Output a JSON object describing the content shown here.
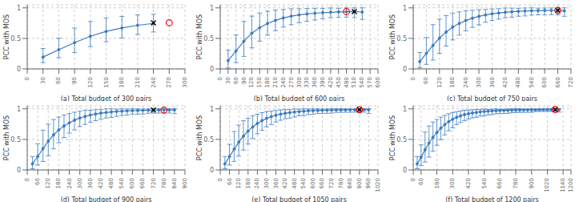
{
  "chart_data": [
    {
      "type": "line",
      "x_label": "(a) Total budget of 300 pairs",
      "y_label": "PCC with MOS",
      "xlim": [
        0,
        300
      ],
      "xticks": [
        0,
        30,
        60,
        90,
        120,
        150,
        180,
        210,
        240,
        270,
        300
      ],
      "ylim": [
        0,
        1.05
      ],
      "yticks": [
        0,
        0.5,
        1
      ],
      "grid": true,
      "series": [
        {
          "type": "line",
          "color": "#3b7bbf",
          "marker": "circle",
          "x": [
            30,
            60,
            90,
            120,
            150,
            180,
            210,
            240
          ],
          "values": [
            0.195,
            0.315,
            0.43,
            0.535,
            0.615,
            0.67,
            0.715,
            0.745
          ],
          "err_lo": [
            0.09,
            0.13,
            0.16,
            0.17,
            0.17,
            0.16,
            0.15,
            0.14
          ],
          "err_hi": [
            0.14,
            0.19,
            0.24,
            0.24,
            0.22,
            0.19,
            0.17,
            0.15
          ]
        },
        {
          "type": "scatter",
          "color": "black",
          "marker": "x",
          "x": [
            240
          ],
          "values": [
            0.755
          ]
        },
        {
          "type": "scatter",
          "color": "red",
          "marker": "open_circle",
          "x": [
            270
          ],
          "values": [
            0.755
          ]
        }
      ]
    },
    {
      "type": "line",
      "x_label": "(b) Total budget of 600 pairs",
      "y_label": "PCC with MOS",
      "xlim": [
        0,
        600
      ],
      "xticks": [
        0,
        30,
        60,
        90,
        120,
        150,
        180,
        210,
        240,
        270,
        300,
        330,
        360,
        390,
        420,
        450,
        480,
        510,
        540,
        570,
        600
      ],
      "ylim": [
        0,
        1.05
      ],
      "yticks": [
        0,
        0.5,
        1
      ],
      "grid": true,
      "series": [
        {
          "type": "line",
          "color": "#3b7bbf",
          "marker": "circle",
          "x": [
            30,
            60,
            90,
            120,
            150,
            180,
            210,
            240,
            270,
            300,
            330,
            360,
            390,
            420,
            450,
            480,
            510,
            540
          ],
          "values": [
            0.135,
            0.295,
            0.455,
            0.585,
            0.675,
            0.745,
            0.795,
            0.835,
            0.865,
            0.885,
            0.9,
            0.912,
            0.922,
            0.928,
            0.934,
            0.938,
            0.94,
            0.932
          ],
          "err_lo": [
            0.12,
            0.19,
            0.25,
            0.24,
            0.22,
            0.19,
            0.17,
            0.15,
            0.14,
            0.13,
            0.12,
            0.11,
            0.1,
            0.09,
            0.09,
            0.09,
            0.1,
            0.12
          ],
          "err_hi": [
            0.17,
            0.26,
            0.32,
            0.28,
            0.24,
            0.2,
            0.17,
            0.14,
            0.12,
            0.1,
            0.09,
            0.08,
            0.07,
            0.07,
            0.06,
            0.062,
            0.06,
            0.068
          ]
        },
        {
          "type": "scatter",
          "color": "black",
          "marker": "x",
          "x": [
            510
          ],
          "values": [
            0.94
          ]
        },
        {
          "type": "scatter",
          "color": "red",
          "marker": "open_circle",
          "x": [
            480
          ],
          "values": [
            0.94
          ]
        }
      ]
    },
    {
      "type": "line",
      "x_label": "(c) Total budget of 750 pairs",
      "y_label": "PCC with MOS",
      "xlim": [
        0,
        720
      ],
      "xticks": [
        0,
        60,
        120,
        180,
        240,
        300,
        360,
        420,
        480,
        540,
        600,
        660,
        720
      ],
      "ylim": [
        0,
        1.05
      ],
      "yticks": [
        0,
        0.5,
        1
      ],
      "grid": true,
      "series": [
        {
          "type": "line",
          "color": "#3b7bbf",
          "marker": "circle",
          "x": [
            30,
            60,
            90,
            120,
            150,
            180,
            210,
            240,
            270,
            300,
            330,
            360,
            390,
            420,
            450,
            480,
            510,
            540,
            570,
            600,
            630,
            660,
            690
          ],
          "values": [
            0.12,
            0.255,
            0.385,
            0.505,
            0.605,
            0.685,
            0.745,
            0.793,
            0.831,
            0.861,
            0.884,
            0.903,
            0.916,
            0.927,
            0.936,
            0.943,
            0.948,
            0.952,
            0.955,
            0.957,
            0.958,
            0.958,
            0.952
          ],
          "err_lo": [
            0.1,
            0.18,
            0.24,
            0.25,
            0.23,
            0.21,
            0.19,
            0.17,
            0.15,
            0.14,
            0.12,
            0.11,
            0.1,
            0.09,
            0.09,
            0.08,
            0.08,
            0.07,
            0.07,
            0.07,
            0.07,
            0.07,
            0.09
          ],
          "err_hi": [
            0.15,
            0.26,
            0.34,
            0.31,
            0.27,
            0.23,
            0.19,
            0.16,
            0.13,
            0.11,
            0.09,
            0.08,
            0.07,
            0.07,
            0.06,
            0.05,
            0.05,
            0.048,
            0.04,
            0.04,
            0.04,
            0.042,
            0.048
          ]
        },
        {
          "type": "scatter",
          "color": "black",
          "marker": "x",
          "x": [
            660
          ],
          "values": [
            0.958
          ]
        },
        {
          "type": "scatter",
          "color": "red",
          "marker": "open_circle",
          "x": [
            660
          ],
          "values": [
            0.958
          ]
        }
      ]
    },
    {
      "type": "line",
      "x_label": "(d) Total budget of 900 pairs",
      "y_label": "PCC with MOS",
      "xlim": [
        0,
        900
      ],
      "xticks": [
        0,
        60,
        120,
        180,
        240,
        300,
        360,
        420,
        480,
        540,
        600,
        660,
        720,
        780,
        840,
        900
      ],
      "ylim": [
        0,
        1.05
      ],
      "yticks": [
        0,
        0.5,
        1
      ],
      "grid": true,
      "series": [
        {
          "type": "line",
          "color": "#3b7bbf",
          "marker": "circle",
          "x": [
            30,
            60,
            90,
            120,
            150,
            180,
            210,
            240,
            270,
            300,
            330,
            360,
            390,
            420,
            450,
            480,
            510,
            540,
            570,
            600,
            630,
            660,
            690,
            720,
            750,
            780,
            810,
            840
          ],
          "values": [
            0.1,
            0.22,
            0.35,
            0.47,
            0.575,
            0.655,
            0.72,
            0.772,
            0.815,
            0.85,
            0.876,
            0.898,
            0.916,
            0.93,
            0.941,
            0.95,
            0.957,
            0.963,
            0.967,
            0.971,
            0.974,
            0.976,
            0.978,
            0.98,
            0.981,
            0.982,
            0.983,
            0.982
          ],
          "err_lo": [
            0.08,
            0.14,
            0.21,
            0.24,
            0.23,
            0.21,
            0.19,
            0.17,
            0.16,
            0.14,
            0.13,
            0.12,
            0.11,
            0.1,
            0.09,
            0.09,
            0.08,
            0.07,
            0.07,
            0.06,
            0.06,
            0.06,
            0.05,
            0.05,
            0.05,
            0.05,
            0.05,
            0.06
          ],
          "err_hi": [
            0.12,
            0.21,
            0.3,
            0.28,
            0.25,
            0.21,
            0.18,
            0.15,
            0.13,
            0.11,
            0.1,
            0.08,
            0.07,
            0.06,
            0.059,
            0.05,
            0.04,
            0.037,
            0.03,
            0.029,
            0.026,
            0.02,
            0.02,
            0.02,
            0.019,
            0.018,
            0.017,
            0.018
          ]
        },
        {
          "type": "scatter",
          "color": "black",
          "marker": "x",
          "x": [
            720
          ],
          "values": [
            0.98
          ]
        },
        {
          "type": "scatter",
          "color": "red",
          "marker": "open_circle",
          "x": [
            780
          ],
          "values": [
            0.98
          ]
        }
      ]
    },
    {
      "type": "line",
      "x_label": "(e) Total budget of 1050 pairs",
      "y_label": "PCC with MOS",
      "xlim": [
        0,
        1020
      ],
      "xticks": [
        0,
        60,
        120,
        180,
        240,
        300,
        360,
        420,
        480,
        540,
        600,
        660,
        720,
        780,
        840,
        900,
        960,
        1020
      ],
      "ylim": [
        0,
        1.05
      ],
      "yticks": [
        0,
        0.5,
        1
      ],
      "grid": true,
      "series": [
        {
          "type": "line",
          "color": "#3b7bbf",
          "marker": "circle",
          "x": [
            30,
            60,
            90,
            120,
            150,
            180,
            210,
            240,
            270,
            300,
            330,
            360,
            390,
            420,
            450,
            480,
            510,
            540,
            570,
            600,
            630,
            660,
            690,
            720,
            750,
            780,
            810,
            840,
            870,
            900,
            930,
            960
          ],
          "values": [
            0.1,
            0.22,
            0.34,
            0.455,
            0.555,
            0.635,
            0.705,
            0.762,
            0.808,
            0.845,
            0.873,
            0.896,
            0.913,
            0.928,
            0.939,
            0.948,
            0.956,
            0.962,
            0.967,
            0.971,
            0.974,
            0.976,
            0.978,
            0.98,
            0.982,
            0.983,
            0.984,
            0.985,
            0.986,
            0.987,
            0.987,
            0.984
          ],
          "err_lo": [
            0.08,
            0.14,
            0.2,
            0.23,
            0.23,
            0.21,
            0.19,
            0.17,
            0.16,
            0.14,
            0.13,
            0.11,
            0.1,
            0.09,
            0.09,
            0.08,
            0.07,
            0.07,
            0.06,
            0.06,
            0.05,
            0.05,
            0.05,
            0.05,
            0.04,
            0.04,
            0.04,
            0.04,
            0.04,
            0.04,
            0.04,
            0.06
          ],
          "err_hi": [
            0.12,
            0.2,
            0.29,
            0.28,
            0.25,
            0.21,
            0.18,
            0.15,
            0.13,
            0.11,
            0.09,
            0.08,
            0.07,
            0.06,
            0.05,
            0.05,
            0.04,
            0.038,
            0.03,
            0.029,
            0.026,
            0.02,
            0.02,
            0.02,
            0.018,
            0.017,
            0.016,
            0.01,
            0.01,
            0.01,
            0.013,
            0.016
          ]
        },
        {
          "type": "scatter",
          "color": "black",
          "marker": "x",
          "x": [
            900
          ],
          "values": [
            0.987
          ]
        },
        {
          "type": "scatter",
          "color": "red",
          "marker": "open_circle",
          "x": [
            900
          ],
          "values": [
            0.987
          ]
        }
      ]
    },
    {
      "type": "line",
      "x_label": "(f) Total budget of 1200 pairs",
      "y_label": "PCC with MOS",
      "xlim": [
        0,
        1200
      ],
      "xticks": [
        0,
        60,
        180,
        300,
        420,
        540,
        660,
        780,
        900,
        1020,
        1140,
        1200
      ],
      "ylim": [
        0,
        1.05
      ],
      "yticks": [
        0,
        0.5,
        1
      ],
      "grid": true,
      "series": [
        {
          "type": "line",
          "color": "#3b7bbf",
          "marker": "circle",
          "x": [
            30,
            60,
            90,
            120,
            150,
            180,
            210,
            240,
            270,
            300,
            330,
            360,
            390,
            420,
            450,
            480,
            510,
            540,
            570,
            600,
            630,
            660,
            690,
            720,
            750,
            780,
            810,
            840,
            870,
            900,
            930,
            960,
            990,
            1020,
            1050,
            1080,
            1110
          ],
          "values": [
            0.1,
            0.21,
            0.33,
            0.44,
            0.535,
            0.615,
            0.685,
            0.743,
            0.791,
            0.83,
            0.862,
            0.886,
            0.906,
            0.921,
            0.933,
            0.942,
            0.95,
            0.957,
            0.962,
            0.966,
            0.97,
            0.973,
            0.975,
            0.977,
            0.979,
            0.981,
            0.982,
            0.983,
            0.984,
            0.985,
            0.986,
            0.987,
            0.988,
            0.988,
            0.989,
            0.989,
            0.987
          ],
          "err_lo": [
            0.08,
            0.14,
            0.2,
            0.23,
            0.23,
            0.21,
            0.19,
            0.17,
            0.15,
            0.14,
            0.12,
            0.11,
            0.1,
            0.09,
            0.08,
            0.08,
            0.07,
            0.07,
            0.06,
            0.06,
            0.05,
            0.05,
            0.05,
            0.05,
            0.04,
            0.04,
            0.04,
            0.04,
            0.04,
            0.04,
            0.03,
            0.03,
            0.03,
            0.03,
            0.03,
            0.03,
            0.04
          ],
          "err_hi": [
            0.12,
            0.2,
            0.29,
            0.28,
            0.25,
            0.21,
            0.18,
            0.15,
            0.13,
            0.11,
            0.09,
            0.08,
            0.07,
            0.06,
            0.05,
            0.05,
            0.04,
            0.04,
            0.03,
            0.03,
            0.03,
            0.02,
            0.02,
            0.02,
            0.02,
            0.019,
            0.018,
            0.01,
            0.01,
            0.01,
            0.01,
            0.01,
            0.01,
            0.01,
            0.01,
            0.01,
            0.013
          ]
        },
        {
          "type": "scatter",
          "color": "black",
          "marker": "x",
          "x": [
            1080
          ],
          "values": [
            0.989
          ]
        },
        {
          "type": "scatter",
          "color": "red",
          "marker": "open_circle",
          "x": [
            1080
          ],
          "values": [
            0.989
          ]
        }
      ]
    }
  ]
}
